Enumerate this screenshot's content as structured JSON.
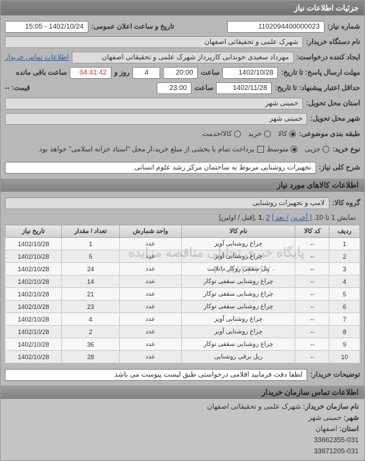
{
  "panel_title": "جزئیات اطلاعات نیاز",
  "need_number": {
    "label": "شماره نیاز:",
    "value": "1102094400000023"
  },
  "announce": {
    "label": "تاریخ و ساعت اعلان عمومی:",
    "value": "1402/10/24 - 15:05"
  },
  "buyer_org": {
    "label": "نام دستگاه خریدار:",
    "value": "شهرک علمی و تحقیقاتی اصفهان"
  },
  "requester": {
    "label": "ایجاد کننده درخواست:",
    "value": "مهرداد سعیدی خوندابی کارپرداز شهرک علمی و تحقیقاتی اصفهان"
  },
  "contact_link": "اطلاعات تماس خریدار",
  "deadline": {
    "label": "مهلت ارسال پاسخ: تا تاریخ:",
    "date": "1402/10/28",
    "time_label": "ساعت",
    "time": "20:00",
    "days_remaining": "4",
    "days_suffix": "روز و",
    "countdown": "04:41:42",
    "countdown_suffix": "ساعت باقی مانده"
  },
  "validity": {
    "label": "حداقل اعتبار پیشنهاد: تا تاریخ:",
    "date": "1402/11/28",
    "time_label": "ساعت",
    "time": "23:00",
    "price_label": "قیمت: --"
  },
  "service_province": {
    "label": "استان محل تحویل:",
    "value": "خمینی شهر"
  },
  "service_city": {
    "label": "شهر محل تحویل:",
    "value": "خمینی شهر"
  },
  "category": {
    "label": "طبقه بندی موضوعی:",
    "options": [
      {
        "text": "کالا",
        "selected": true
      },
      {
        "text": "خرید",
        "selected": false
      },
      {
        "text": "کالا/خدمت",
        "selected": false
      }
    ]
  },
  "buy_type": {
    "label": "نوع خرید:",
    "options": [
      {
        "text": "جزیی",
        "selected": false
      },
      {
        "text": "متوسط",
        "selected": true
      }
    ],
    "note_check_label": "",
    "note": "پرداخت تمام یا بخشی از مبلغ خرید،از محل \"اسناد خزانه اسلامی\" خواهد بود."
  },
  "general_desc": {
    "label": "شرح کلی نیاز:",
    "value": "تجهیزات روشنایی مربوط به ساختمان مرکز رشد علوم انسانی"
  },
  "goods_header": "اطلاعات کالاهای مورد نیاز",
  "goods_group": {
    "label": "گروه کالا:",
    "value": "لامپ و تجهیزات روشنایی"
  },
  "pager": {
    "text_prefix": "نمایش 1 تا 10.",
    "last": "[ آخرین",
    "next": "/ بعد ]",
    "p2": "2",
    "p1": "1",
    "suffix": ",[قبل / اولین]"
  },
  "table": {
    "columns": [
      "ردیف",
      "کد کالا",
      "نام کالا",
      "واحد شمارش",
      "تعداد / مقدار",
      "تاریخ نیاز"
    ],
    "rows": [
      [
        "1",
        "--",
        "چراغ روشنایی آویز",
        "عدد",
        "1",
        "1402/10/28"
      ],
      [
        "2",
        "--",
        "چراغ روشنایی آویز",
        "عدد",
        "5",
        "1402/10/28"
      ],
      [
        "3",
        "--",
        "پنل سقفی روکار دانلایت",
        "عدد",
        "24",
        "1402/10/28"
      ],
      [
        "4",
        "--",
        "چراغ روشنایی سقفی توکار",
        "عدد",
        "14",
        "1402/10/28"
      ],
      [
        "5",
        "--",
        "چراغ روشنایی سقفی توکار",
        "عدد",
        "21",
        "1402/10/28"
      ],
      [
        "6",
        "--",
        "چراغ روشنایی سقفی توکار",
        "عدد",
        "23",
        "1402/10/28"
      ],
      [
        "7",
        "--",
        "چراغ روشنایی آویز",
        "عدد",
        "4",
        "1402/10/28"
      ],
      [
        "8",
        "--",
        "چراغ روشنایی آویز",
        "عدد",
        "2",
        "1402/10/28"
      ],
      [
        "9",
        "--",
        "چراغ روشنایی سقفی توکار",
        "عدد",
        "36",
        "1402/10/28"
      ],
      [
        "10",
        "--",
        "ریل برقی روشنایی",
        "عدد",
        "28",
        "1402/10/28"
      ]
    ]
  },
  "watermark1": "پایگاه خبری تحلیلی مناقصه مزایده",
  "watermark2": "۰۲۱-۸۸۳۴۹۶۷۰",
  "buyer_notes": {
    "label": "توضیحات خریدار:",
    "value": "لطفا دقت فرمایید اقلامی درخواستی طبق لیست پیوست می باشد"
  },
  "contact_header": "اطلاعات تماس سازمان خریدار",
  "contact": {
    "org_label": "نام سازمان خریدار:",
    "org": "شهرک علمی و تحقیقاتی اصفهان",
    "city_label": "شهر:",
    "city": "خمینی شهر",
    "province_label": "استان:",
    "province": "اصفهان",
    "tel": "33862355-031",
    "fax": "33871205-031"
  }
}
